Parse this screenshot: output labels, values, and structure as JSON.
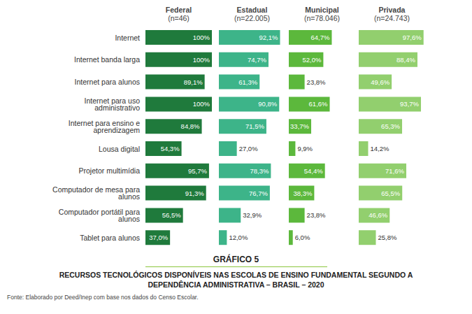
{
  "chart_data": {
    "type": "bar",
    "orientation": "horizontal",
    "title": "GRÁFICO 5",
    "subtitle": "RECURSOS TECNOLÓGICOS DISPONÍVEIS NAS ESCOLAS DE ENSINO FUNDAMENTAL SEGUNDO A DEPENDÊNCIA ADMINISTRATIVA – BRASIL – 2020",
    "annotations": [
      "Fonte: Elaborado por Deed/Inep com base nos dados do Censo Escolar."
    ],
    "categories": [
      "Internet",
      "Internet banda larga",
      "Internet para alunos",
      "Internet para uso administrativo",
      "Internet para ensino e aprendizagem",
      "Lousa digital",
      "Projetor multimídia",
      "Computador de mesa para alunos",
      "Computador portátil para alunos",
      "Tablet para alunos"
    ],
    "series": [
      {
        "name": "Federal (n=46)",
        "color": "#1f7a3c",
        "values": [
          100,
          100,
          89.1,
          100,
          84.8,
          54.3,
          95.7,
          91.3,
          56.5,
          37.0
        ],
        "value_labels": [
          "100%",
          "100%",
          "89,1%",
          "100%",
          "84,8%",
          "54,3%",
          "95,7%",
          "91,3%",
          "56,5%",
          "37,0%"
        ]
      },
      {
        "name": "Estadual (n=22.005)",
        "color": "#3db489",
        "values": [
          92.1,
          74.7,
          61.3,
          90.8,
          71.5,
          27.0,
          78.3,
          76.7,
          32.9,
          12.0
        ],
        "value_labels": [
          "92,1%",
          "74,7%",
          "61,3%",
          "90,8%",
          "71,5%",
          "27,0%",
          "78,3%",
          "76,7%",
          "32,9%",
          "12,0%"
        ]
      },
      {
        "name": "Municipal (n=78.046)",
        "color": "#5cb83c",
        "values": [
          64.7,
          52.0,
          23.8,
          61.6,
          33.7,
          9.9,
          54.4,
          38.3,
          23.8,
          6.0
        ],
        "value_labels": [
          "64,7%",
          "52,0%",
          "23,8%",
          "61,6%",
          "33,7%",
          "9,9%",
          "54,4%",
          "38,3%",
          "23,8%",
          "6,0%"
        ]
      },
      {
        "name": "Privada (n=24.743)",
        "color": "#92cf6e",
        "values": [
          97.6,
          88.4,
          49.6,
          93.7,
          65.3,
          14.2,
          71.6,
          65.5,
          46.6,
          25.8
        ],
        "value_labels": [
          "97,6%",
          "88,4%",
          "49,6%",
          "93,7%",
          "65,3%",
          "14,2%",
          "71,6%",
          "65,5%",
          "46,6%",
          "25,8%"
        ]
      }
    ],
    "xlim": [
      0,
      100
    ],
    "data_labels": true,
    "tick_labels": "y",
    "grid": false
  }
}
